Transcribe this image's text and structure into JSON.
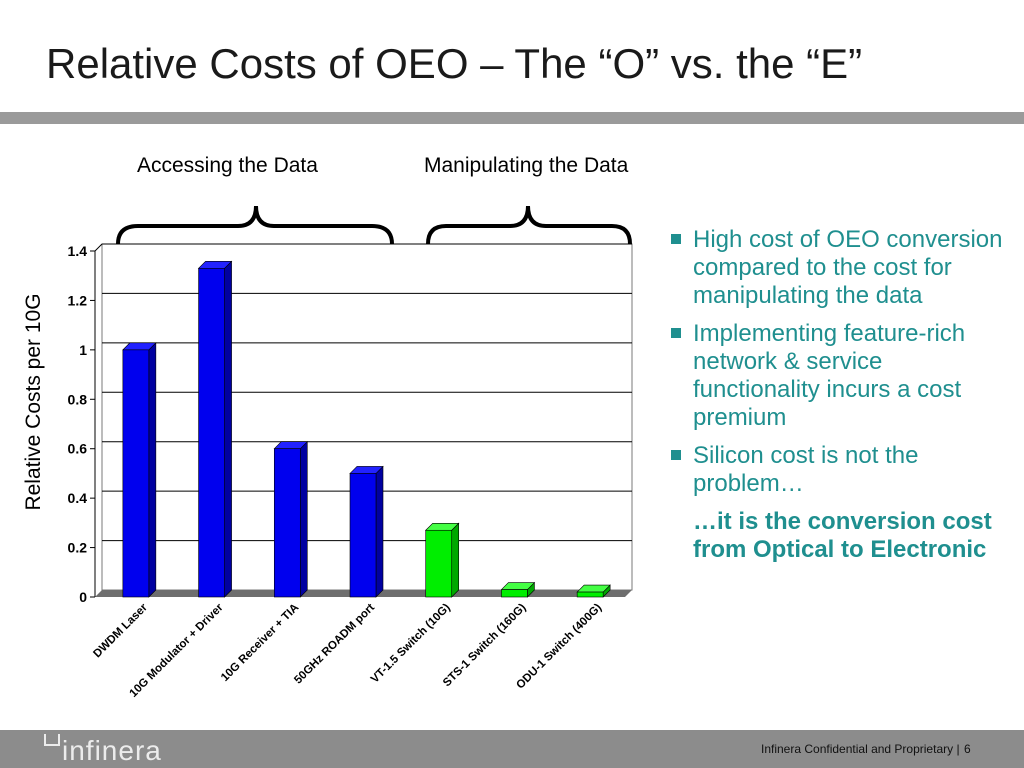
{
  "slide": {
    "title": "Relative Costs of OEO – The “O” vs. the “E”",
    "section_left": "Accessing the Data",
    "section_right": "Manipulating the Data"
  },
  "bullets": [
    "High cost of OEO conversion compared to the cost for manipulating the data",
    "Implementing feature-rich network & service functionality incurs a cost premium",
    "Silicon cost is not the problem…"
  ],
  "conclusion": "…it is the conversion cost from Optical to Electronic",
  "footer": {
    "logo": "infinera",
    "confidential": "Infinera Confidential and Proprietary  |",
    "page_number": "6"
  },
  "colors": {
    "accent": "#1f8f8f",
    "bar_blue": "#0000ee",
    "bar_green": "#00ee00",
    "footer_bar": "#8c8c8c",
    "title_bar": "#9a9a9a"
  },
  "chart_data": {
    "type": "bar",
    "ylabel": "Relative Costs per 10G",
    "xlabel": "",
    "ylim": [
      0,
      1.4
    ],
    "yticks": [
      "0",
      "0.2",
      "0.4",
      "0.6",
      "0.8",
      "1",
      "1.2",
      "1.4"
    ],
    "grid": true,
    "categories": [
      "DWDM Laser",
      "10G Modulator + Driver",
      "10G Receiver + TIA",
      "50GHz ROADM port",
      "VT-1.5 Switch (10G)",
      "STS-1 Switch (160G)",
      "ODU-1 Switch (400G)"
    ],
    "values": [
      1.0,
      1.33,
      0.6,
      0.5,
      0.27,
      0.03,
      0.02
    ],
    "groups": [
      "access",
      "access",
      "access",
      "access",
      "manipulate",
      "manipulate",
      "manipulate"
    ]
  }
}
